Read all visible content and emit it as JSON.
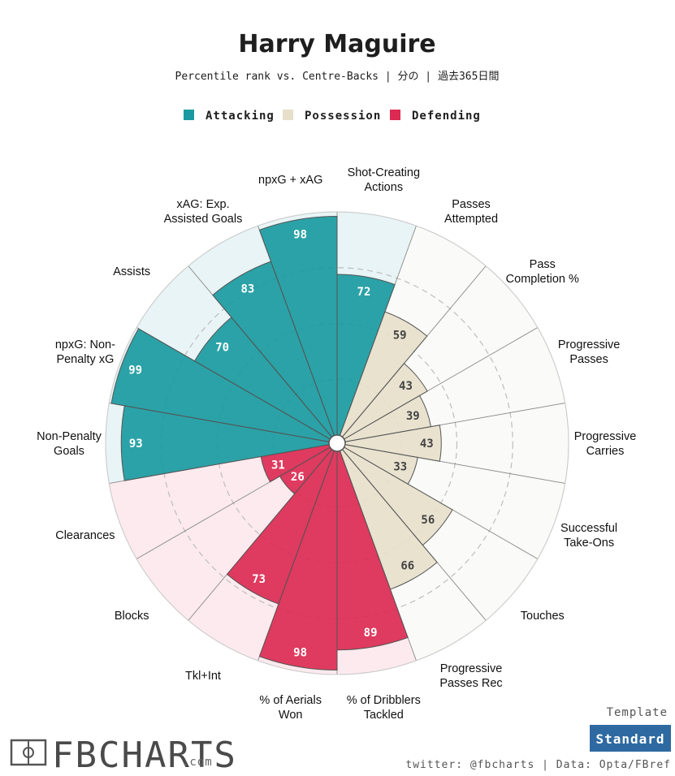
{
  "header": {
    "title": "Harry Maguire",
    "subtitle": "Percentile rank vs. Centre-Backs | 分の | 過去365日間"
  },
  "legend": [
    {
      "label": "Attacking",
      "color": "#1a9aa0"
    },
    {
      "label": "Possession",
      "color": "#e6dfcb"
    },
    {
      "label": "Defending",
      "color": "#dc2a52"
    }
  ],
  "chart_data": {
    "type": "polar_bar",
    "title": "Harry Maguire",
    "subtitle": "Percentile rank vs. Centre-Backs | 分の | 過去365日間",
    "rlim": [
      0,
      100
    ],
    "gridlines": [
      25,
      50,
      75
    ],
    "categories": [
      {
        "label": "Shot-Creating\nActions",
        "value": 72,
        "group": "Attacking"
      },
      {
        "label": "Passes\nAttempted",
        "value": 59,
        "group": "Possession"
      },
      {
        "label": "Pass\nCompletion %",
        "value": 43,
        "group": "Possession"
      },
      {
        "label": "Progressive\nPasses",
        "value": 39,
        "group": "Possession"
      },
      {
        "label": "Progressive\nCarries",
        "value": 43,
        "group": "Possession"
      },
      {
        "label": "Successful\nTake-Ons",
        "value": 33,
        "group": "Possession"
      },
      {
        "label": "Touches",
        "value": 56,
        "group": "Possession"
      },
      {
        "label": "Progressive\nPasses Rec",
        "value": 66,
        "group": "Possession"
      },
      {
        "label": "% of Dribblers\nTackled",
        "value": 89,
        "group": "Defending"
      },
      {
        "label": "% of Aerials\nWon",
        "value": 98,
        "group": "Defending"
      },
      {
        "label": "Tkl+Int",
        "value": 73,
        "group": "Defending"
      },
      {
        "label": "Blocks",
        "value": 26,
        "group": "Defending"
      },
      {
        "label": "Clearances",
        "value": 31,
        "group": "Defending"
      },
      {
        "label": "Non-Penalty\nGoals",
        "value": 93,
        "group": "Attacking"
      },
      {
        "label": "npxG: Non-\nPenalty xG",
        "value": 99,
        "group": "Attacking"
      },
      {
        "label": "Assists",
        "value": 70,
        "group": "Attacking"
      },
      {
        "label": "xAG: Exp.\nAssisted Goals",
        "value": 83,
        "group": "Attacking"
      },
      {
        "label": "npxG + xAG",
        "value": 98,
        "group": "Attacking"
      }
    ],
    "colors": {
      "Attacking": {
        "bar": "#1a9aa0",
        "bg": "#e8f4f5",
        "text": "#ffffff"
      },
      "Possession": {
        "bar": "#e6dfcb",
        "bg": "#fafaf8",
        "text": "#444444"
      },
      "Defending": {
        "bar": "#dc2a52",
        "bg": "#fdeaee",
        "text": "#ffffff"
      }
    }
  },
  "footer": {
    "logo": "FBCHARTS",
    "logo_suffix": ".com",
    "credit": "twitter: @fbcharts | Data: Opta/FBref",
    "template_label": "Template",
    "template_button": "Standard",
    "template_button_color": "#2e6aa1"
  }
}
